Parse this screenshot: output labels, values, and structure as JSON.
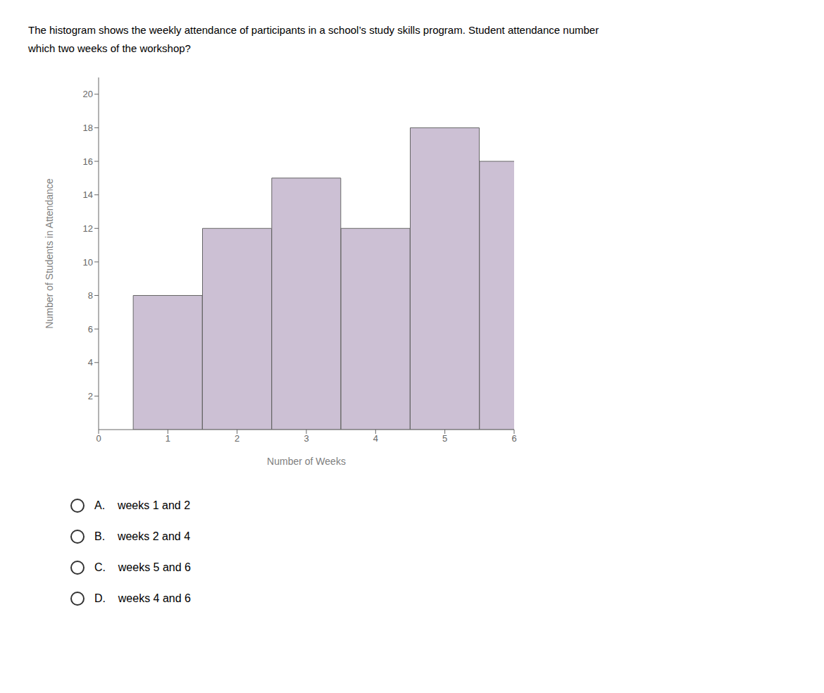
{
  "chart_data": {
    "type": "bar",
    "title": "The histogram shows the weekly attendance of participants in a school’s study skills program. Student attendance number",
    "subtitle": "which two weeks of the workshop?",
    "x": [
      1,
      2,
      3,
      4,
      5,
      6
    ],
    "values": [
      8,
      12,
      15,
      12,
      18,
      16
    ],
    "color": "#ccc0d4",
    "xlabel": "Number of Weeks",
    "ylabel": "Number of Students in Attendance",
    "xlim": [
      0,
      6
    ],
    "ylim": [
      0,
      21
    ],
    "xticks": [
      0,
      1,
      2,
      3,
      4,
      5,
      6
    ],
    "yticks": [
      2,
      4,
      6,
      8,
      10,
      12,
      14,
      16,
      18,
      20
    ],
    "grid": false,
    "annotations": [
      "A.    weeks 1 and 2",
      "B.    weeks 2 and 4",
      "C.    weeks 5 and 6",
      "D.    weeks 4 and 6"
    ]
  }
}
